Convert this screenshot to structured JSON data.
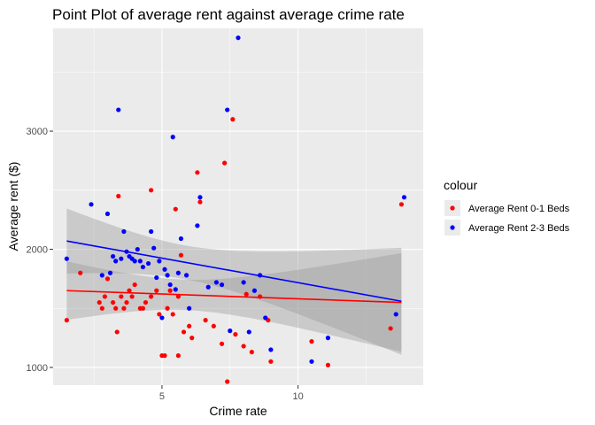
{
  "chart_data": {
    "type": "scatter",
    "title": "Point Plot of average rent against average crime rate",
    "xlabel": "Crime rate",
    "ylabel": "Average rent ($)",
    "xlim": [
      1.0,
      14.6
    ],
    "ylim": [
      850,
      3870
    ],
    "x_ticks": [
      5,
      10
    ],
    "y_ticks": [
      1000,
      2000,
      3000
    ],
    "grid": true,
    "legend": {
      "title": "colour",
      "placement": "right"
    },
    "series": [
      {
        "name": "Average Rent 0-1 Beds",
        "color": "#ff0000",
        "points": [
          [
            1.5,
            1400
          ],
          [
            2.0,
            1800
          ],
          [
            2.7,
            1550
          ],
          [
            2.8,
            1500
          ],
          [
            2.9,
            1600
          ],
          [
            3.0,
            1750
          ],
          [
            3.2,
            1550
          ],
          [
            3.3,
            1500
          ],
          [
            3.35,
            1300
          ],
          [
            3.4,
            2450
          ],
          [
            3.5,
            1600
          ],
          [
            3.6,
            1500
          ],
          [
            3.7,
            1550
          ],
          [
            3.8,
            1650
          ],
          [
            3.9,
            1600
          ],
          [
            4.0,
            1700
          ],
          [
            4.2,
            1500
          ],
          [
            4.3,
            1500
          ],
          [
            4.4,
            1550
          ],
          [
            4.6,
            2500
          ],
          [
            4.6,
            1600
          ],
          [
            4.8,
            1650
          ],
          [
            4.9,
            1450
          ],
          [
            5.0,
            1100
          ],
          [
            5.1,
            1100
          ],
          [
            5.2,
            1500
          ],
          [
            5.3,
            1650
          ],
          [
            5.4,
            1450
          ],
          [
            5.5,
            2340
          ],
          [
            5.6,
            1100
          ],
          [
            5.6,
            1600
          ],
          [
            5.7,
            1950
          ],
          [
            5.8,
            1300
          ],
          [
            6.0,
            1350
          ],
          [
            6.1,
            1250
          ],
          [
            6.3,
            2650
          ],
          [
            6.4,
            2400
          ],
          [
            6.6,
            1400
          ],
          [
            6.9,
            1350
          ],
          [
            7.2,
            1200
          ],
          [
            7.3,
            2730
          ],
          [
            7.4,
            880
          ],
          [
            7.6,
            3100
          ],
          [
            7.7,
            1280
          ],
          [
            8.0,
            1180
          ],
          [
            8.1,
            1620
          ],
          [
            8.3,
            1130
          ],
          [
            8.6,
            1600
          ],
          [
            8.9,
            1400
          ],
          [
            9.0,
            1050
          ],
          [
            10.5,
            1220
          ],
          [
            11.1,
            1020
          ],
          [
            13.4,
            1330
          ],
          [
            13.8,
            2380
          ]
        ],
        "trend": [
          [
            1.5,
            1650
          ],
          [
            13.8,
            1550
          ]
        ]
      },
      {
        "name": "Average Rent 2-3 Beds",
        "color": "#0000ff",
        "points": [
          [
            1.5,
            1920
          ],
          [
            2.4,
            2380
          ],
          [
            2.8,
            1780
          ],
          [
            3.0,
            2300
          ],
          [
            3.1,
            1800
          ],
          [
            3.2,
            1940
          ],
          [
            3.3,
            1900
          ],
          [
            3.4,
            3180
          ],
          [
            3.5,
            1920
          ],
          [
            3.6,
            2150
          ],
          [
            3.7,
            1980
          ],
          [
            3.8,
            1940
          ],
          [
            3.9,
            1920
          ],
          [
            4.0,
            1900
          ],
          [
            4.1,
            2000
          ],
          [
            4.2,
            1900
          ],
          [
            4.3,
            1850
          ],
          [
            4.5,
            1880
          ],
          [
            4.6,
            2150
          ],
          [
            4.7,
            2010
          ],
          [
            4.8,
            1760
          ],
          [
            4.9,
            1900
          ],
          [
            5.0,
            1420
          ],
          [
            5.1,
            1830
          ],
          [
            5.2,
            1780
          ],
          [
            5.3,
            1700
          ],
          [
            5.4,
            2950
          ],
          [
            5.5,
            1660
          ],
          [
            5.6,
            1800
          ],
          [
            5.7,
            2090
          ],
          [
            5.9,
            1780
          ],
          [
            6.0,
            1500
          ],
          [
            6.3,
            2200
          ],
          [
            6.4,
            2440
          ],
          [
            6.7,
            1680
          ],
          [
            7.0,
            1720
          ],
          [
            7.2,
            1700
          ],
          [
            7.4,
            3180
          ],
          [
            7.5,
            1310
          ],
          [
            7.8,
            3790
          ],
          [
            8.0,
            1720
          ],
          [
            8.2,
            1300
          ],
          [
            8.4,
            1650
          ],
          [
            8.6,
            1780
          ],
          [
            8.8,
            1420
          ],
          [
            9.0,
            1150
          ],
          [
            10.5,
            1050
          ],
          [
            11.1,
            1250
          ],
          [
            13.6,
            1450
          ],
          [
            13.9,
            2440
          ]
        ],
        "trend": [
          [
            1.5,
            2070
          ],
          [
            13.8,
            1560
          ]
        ]
      }
    ]
  }
}
